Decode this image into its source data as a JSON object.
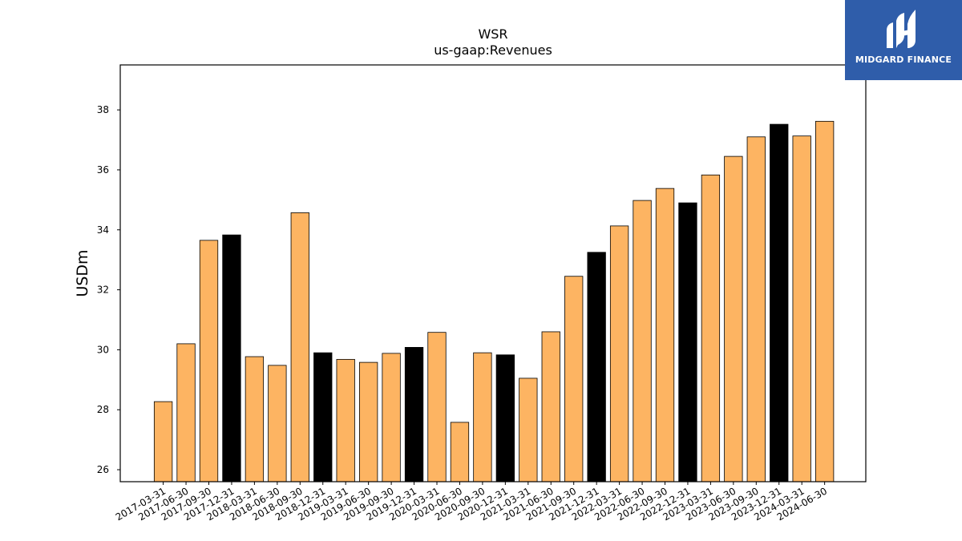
{
  "chart_data": {
    "type": "bar",
    "title": "WSR",
    "subtitle": "us-gaap:Revenues",
    "xlabel": "",
    "ylabel": "USDm",
    "ylim": [
      25.6,
      39.5
    ],
    "yticks": [
      26,
      28,
      30,
      32,
      34,
      36,
      38
    ],
    "grid": false,
    "categories": [
      "2017-03-31",
      "2017-06-30",
      "2017-09-30",
      "2017-12-31",
      "2018-03-31",
      "2018-06-30",
      "2018-09-30",
      "2018-12-31",
      "2019-03-31",
      "2019-06-30",
      "2019-09-30",
      "2019-12-31",
      "2020-03-31",
      "2020-06-30",
      "2020-09-30",
      "2020-12-31",
      "2021-03-31",
      "2021-06-30",
      "2021-09-30",
      "2021-12-31",
      "2022-03-31",
      "2022-06-30",
      "2022-09-30",
      "2022-12-31",
      "2023-03-31",
      "2023-06-30",
      "2023-09-30",
      "2023-12-31",
      "2024-03-31",
      "2024-06-30"
    ],
    "values": [
      28.27,
      30.2,
      33.65,
      33.83,
      29.77,
      29.48,
      34.57,
      29.9,
      29.68,
      29.58,
      29.88,
      30.08,
      30.58,
      27.58,
      29.9,
      29.83,
      29.05,
      30.6,
      32.45,
      33.25,
      34.13,
      34.98,
      35.38,
      34.9,
      35.83,
      36.45,
      37.1,
      37.52,
      37.13,
      37.62
    ],
    "highlight": [
      false,
      false,
      false,
      true,
      false,
      false,
      false,
      true,
      false,
      false,
      false,
      true,
      false,
      false,
      false,
      true,
      false,
      false,
      false,
      true,
      false,
      false,
      false,
      true,
      false,
      false,
      false,
      true,
      false,
      false
    ],
    "colors": {
      "bar": "#fdb462",
      "highlight_bar": "#000000",
      "bar_edge": "#000000",
      "axis": "#000000"
    }
  },
  "logo": {
    "text": "MIDGARD FINANCE",
    "background": "#2f5daa",
    "color": "#ffffff",
    "icon": "midgard-logo-icon"
  }
}
